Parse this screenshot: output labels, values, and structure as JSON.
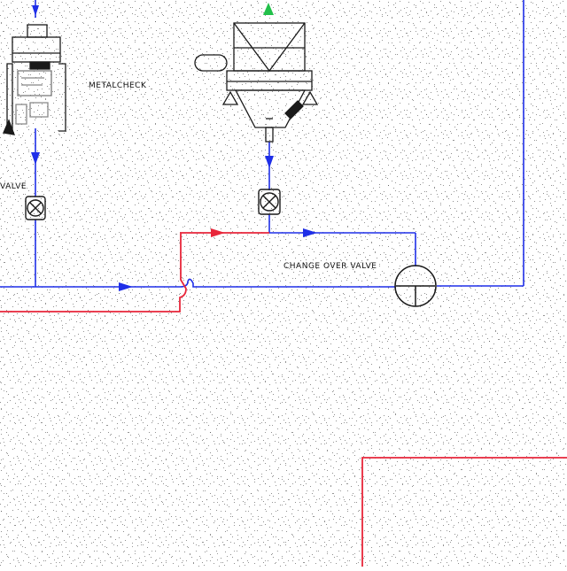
{
  "diagram": {
    "labels": {
      "metal_check": "METALCHECK",
      "valve": "VALVE",
      "change_over_valve": "CHANGE OVER VALVE"
    },
    "colors": {
      "background": "#ffffff",
      "line_blue": "#1f2fe8",
      "line_red": "#e8263a",
      "equipment": "#1a1a1a",
      "arrow_green": "#22c04a",
      "noise": "#222222"
    },
    "icons": [
      "metal-detector-icon",
      "hopper-icon",
      "butterfly-valve-icon",
      "change-over-valve-icon",
      "flow-arrow-icon"
    ]
  }
}
